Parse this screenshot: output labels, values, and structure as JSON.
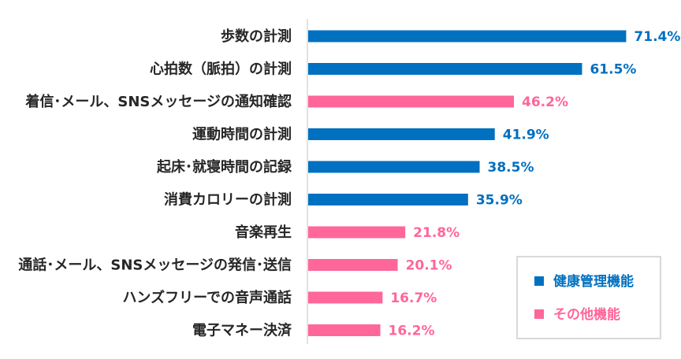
{
  "chart_data": {
    "type": "bar",
    "orientation": "horizontal",
    "categories": [
      "歩数の計測",
      "心拍数（脈拍）の計測",
      "着信･メール、SNSメッセージの通知確認",
      "運動時間の計測",
      "起床･就寝時間の記録",
      "消費カロリーの計測",
      "音楽再生",
      "通話･メール、SNSメッセージの発信･送信",
      "ハンズフリーでの音声通話",
      "電子マネー決済"
    ],
    "values": [
      71.4,
      61.5,
      46.2,
      41.9,
      38.5,
      35.9,
      21.8,
      20.1,
      16.7,
      16.2
    ],
    "value_labels": [
      "71.4%",
      "61.5%",
      "46.2%",
      "41.9%",
      "38.5%",
      "35.9%",
      "21.8%",
      "20.1%",
      "16.7%",
      "16.2%"
    ],
    "groups": [
      "health",
      "health",
      "other",
      "health",
      "health",
      "health",
      "other",
      "other",
      "other",
      "other"
    ],
    "xlim": [
      0,
      100
    ],
    "grid": false,
    "legend": {
      "placement": "bottom-right",
      "entries": [
        {
          "key": "health",
          "label": "健康管理機能",
          "color": "#0070c0"
        },
        {
          "key": "other",
          "label": "その他機能",
          "color": "#ff6699"
        }
      ]
    }
  }
}
